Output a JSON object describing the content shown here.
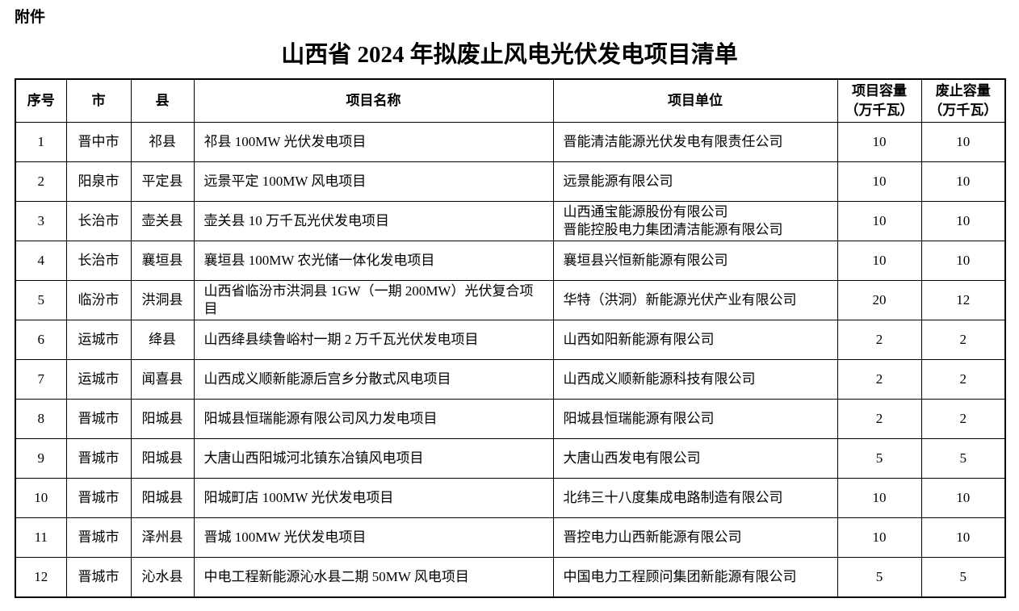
{
  "page": {
    "attachment_label": "附件",
    "title": "山西省 2024 年拟废止风电光伏发电项目清单"
  },
  "table": {
    "headers": {
      "index": "序号",
      "city": "市",
      "county": "县",
      "project_name": "项目名称",
      "project_unit": "项目单位",
      "project_capacity_line1": "项目容量",
      "project_capacity_line2": "（万千瓦）",
      "cancel_capacity_line1": "废止容量",
      "cancel_capacity_line2": "（万千瓦）"
    },
    "rows": [
      {
        "index": "1",
        "city": "晋中市",
        "county": "祁县",
        "name": "祁县 100MW 光伏发电项目",
        "unit": "晋能清洁能源光伏发电有限责任公司",
        "capacity": "10",
        "cancel": "10"
      },
      {
        "index": "2",
        "city": "阳泉市",
        "county": "平定县",
        "name": "远景平定 100MW 风电项目",
        "unit": "远景能源有限公司",
        "capacity": "10",
        "cancel": "10"
      },
      {
        "index": "3",
        "city": "长治市",
        "county": "壶关县",
        "name": "壶关县 10 万千瓦光伏发电项目",
        "unit": "山西通宝能源股份有限公司\n晋能控股电力集团清洁能源有限公司",
        "capacity": "10",
        "cancel": "10"
      },
      {
        "index": "4",
        "city": "长治市",
        "county": "襄垣县",
        "name": "襄垣县 100MW 农光储一体化发电项目",
        "unit": "襄垣县兴恒新能源有限公司",
        "capacity": "10",
        "cancel": "10"
      },
      {
        "index": "5",
        "city": "临汾市",
        "county": "洪洞县",
        "name": "山西省临汾市洪洞县 1GW（一期 200MW）光伏复合项目",
        "unit": "华特（洪洞）新能源光伏产业有限公司",
        "capacity": "20",
        "cancel": "12"
      },
      {
        "index": "6",
        "city": "运城市",
        "county": "绛县",
        "name": "山西绛县续鲁峪村一期 2 万千瓦光伏发电项目",
        "unit": "山西如阳新能源有限公司",
        "capacity": "2",
        "cancel": "2"
      },
      {
        "index": "7",
        "city": "运城市",
        "county": "闻喜县",
        "name": "山西成义顺新能源后宫乡分散式风电项目",
        "unit": "山西成义顺新能源科技有限公司",
        "capacity": "2",
        "cancel": "2"
      },
      {
        "index": "8",
        "city": "晋城市",
        "county": "阳城县",
        "name": "阳城县恒瑞能源有限公司风力发电项目",
        "unit": "阳城县恒瑞能源有限公司",
        "capacity": "2",
        "cancel": "2"
      },
      {
        "index": "9",
        "city": "晋城市",
        "county": "阳城县",
        "name": "大唐山西阳城河北镇东冶镇风电项目",
        "unit": "大唐山西发电有限公司",
        "capacity": "5",
        "cancel": "5"
      },
      {
        "index": "10",
        "city": "晋城市",
        "county": "阳城县",
        "name": "阳城町店 100MW 光伏发电项目",
        "unit": "北纬三十八度集成电路制造有限公司",
        "capacity": "10",
        "cancel": "10"
      },
      {
        "index": "11",
        "city": "晋城市",
        "county": "泽州县",
        "name": "晋城 100MW 光伏发电项目",
        "unit": "晋控电力山西新能源有限公司",
        "capacity": "10",
        "cancel": "10"
      },
      {
        "index": "12",
        "city": "晋城市",
        "county": "沁水县",
        "name": "中电工程新能源沁水县二期 50MW 风电项目",
        "unit": "中国电力工程顾问集团新能源有限公司",
        "capacity": "5",
        "cancel": "5"
      }
    ]
  }
}
